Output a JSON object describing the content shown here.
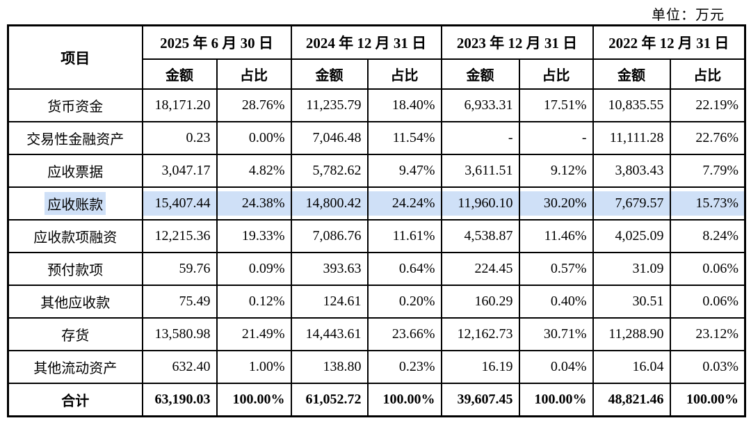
{
  "unit_label": "单位：万元",
  "table": {
    "corner_header": "项目",
    "col_groups": [
      {
        "date": "2025 年 6 月 30 日"
      },
      {
        "date": "2024 年 12 月 31 日"
      },
      {
        "date": "2023 年 12 月 31 日"
      },
      {
        "date": "2022 年 12 月 31 日"
      }
    ],
    "sub_headers": {
      "amount": "金额",
      "ratio": "占比"
    },
    "rows": [
      {
        "label": "货币资金",
        "highlight": false,
        "bold": false,
        "values": [
          "18,171.20",
          "28.76%",
          "11,235.79",
          "18.40%",
          "6,933.31",
          "17.51%",
          "10,835.55",
          "22.19%"
        ]
      },
      {
        "label": "交易性金融资产",
        "highlight": false,
        "bold": false,
        "values": [
          "0.23",
          "0.00%",
          "7,046.48",
          "11.54%",
          "-",
          "-",
          "11,111.28",
          "22.76%"
        ]
      },
      {
        "label": "应收票据",
        "highlight": false,
        "bold": false,
        "values": [
          "3,047.17",
          "4.82%",
          "5,782.62",
          "9.47%",
          "3,611.51",
          "9.12%",
          "3,803.43",
          "7.79%"
        ]
      },
      {
        "label": "应收账款",
        "highlight": true,
        "bold": false,
        "values": [
          "15,407.44",
          "24.38%",
          "14,800.42",
          "24.24%",
          "11,960.10",
          "30.20%",
          "7,679.57",
          "15.73%"
        ]
      },
      {
        "label": "应收款项融资",
        "highlight": false,
        "bold": false,
        "values": [
          "12,215.36",
          "19.33%",
          "7,086.76",
          "11.61%",
          "4,538.87",
          "11.46%",
          "4,025.09",
          "8.24%"
        ]
      },
      {
        "label": "预付款项",
        "highlight": false,
        "bold": false,
        "values": [
          "59.76",
          "0.09%",
          "393.63",
          "0.64%",
          "224.45",
          "0.57%",
          "31.09",
          "0.06%"
        ]
      },
      {
        "label": "其他应收款",
        "highlight": false,
        "bold": false,
        "values": [
          "75.49",
          "0.12%",
          "124.61",
          "0.20%",
          "160.29",
          "0.40%",
          "30.51",
          "0.06%"
        ]
      },
      {
        "label": "存货",
        "highlight": false,
        "bold": false,
        "values": [
          "13,580.98",
          "21.49%",
          "14,443.61",
          "23.66%",
          "12,162.73",
          "30.71%",
          "11,288.90",
          "23.12%"
        ]
      },
      {
        "label": "其他流动资产",
        "highlight": false,
        "bold": false,
        "values": [
          "632.40",
          "1.00%",
          "138.80",
          "0.23%",
          "16.19",
          "0.04%",
          "16.04",
          "0.03%"
        ]
      },
      {
        "label": "合计",
        "highlight": false,
        "bold": true,
        "values": [
          "63,190.03",
          "100.00%",
          "61,052.72",
          "100.00%",
          "39,607.45",
          "100.00%",
          "48,821.46",
          "100.00%"
        ]
      }
    ]
  },
  "colors": {
    "highlight": "#cfe0f7",
    "border": "#000000",
    "background": "#ffffff"
  }
}
